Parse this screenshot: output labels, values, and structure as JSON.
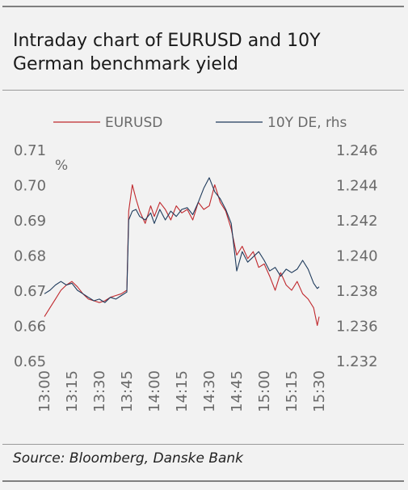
{
  "title": "Intraday chart of EURUSD and 10Y German benchmark yield",
  "source": "Source: Bloomberg, Danske Bank",
  "colors": {
    "eurusd": "#c0282d",
    "de10y": "#1f3b5c",
    "text": "#6a6a6a",
    "background": "#f2f2f2"
  },
  "chart_data": {
    "type": "line",
    "legend": {
      "placement": "top",
      "entries": [
        "EURUSD",
        "10Y DE, rhs"
      ]
    },
    "left_axis": {
      "ticks": [
        "0.71",
        "0.70",
        "0.69",
        "0.68",
        "0.67",
        "0.66",
        "0.65"
      ],
      "range": [
        0.65,
        0.71
      ],
      "unit": "%"
    },
    "right_axis": {
      "ticks": [
        "1.246",
        "1.244",
        "1.242",
        "1.240",
        "1.238",
        "1.236",
        "1.232"
      ],
      "range": [
        1.232,
        1.246
      ]
    },
    "x_ticks": [
      "13:00",
      "13:15",
      "13:30",
      "13:45",
      "14:00",
      "14:15",
      "14:30",
      "14:45",
      "15:00",
      "15:15",
      "15:30"
    ],
    "x_range": [
      "13:00",
      "15:30"
    ],
    "grid": false,
    "series": [
      {
        "name": "EURUSD",
        "axis": "right",
        "color": "#c0282d",
        "x": [
          "13:00",
          "13:03",
          "13:06",
          "13:09",
          "13:12",
          "13:15",
          "13:18",
          "13:21",
          "13:24",
          "13:27",
          "13:30",
          "13:33",
          "13:36",
          "13:39",
          "13:42",
          "13:45",
          "13:46",
          "13:48",
          "13:50",
          "13:52",
          "13:55",
          "13:58",
          "14:00",
          "14:03",
          "14:06",
          "14:09",
          "14:12",
          "14:15",
          "14:18",
          "14:21",
          "14:24",
          "14:27",
          "14:30",
          "14:33",
          "14:36",
          "14:39",
          "14:42",
          "14:45",
          "14:48",
          "14:51",
          "14:54",
          "14:57",
          "15:00",
          "15:03",
          "15:06",
          "15:09",
          "15:12",
          "15:15",
          "15:18",
          "15:21",
          "15:24",
          "15:27",
          "15:29",
          "15:30"
        ],
        "y": [
          1.2365,
          1.237,
          1.2375,
          1.238,
          1.2383,
          1.2385,
          1.2382,
          1.2378,
          1.2375,
          1.2374,
          1.2373,
          1.2374,
          1.2376,
          1.2377,
          1.2378,
          1.238,
          1.2425,
          1.244,
          1.2432,
          1.2425,
          1.2418,
          1.2428,
          1.2422,
          1.243,
          1.2426,
          1.242,
          1.2428,
          1.2424,
          1.2426,
          1.242,
          1.243,
          1.2426,
          1.2428,
          1.244,
          1.243,
          1.2425,
          1.2415,
          1.24,
          1.2405,
          1.2398,
          1.2402,
          1.2393,
          1.2395,
          1.2388,
          1.238,
          1.239,
          1.2383,
          1.238,
          1.2385,
          1.2378,
          1.2375,
          1.237,
          1.236,
          1.2365
        ]
      },
      {
        "name": "10Y DE, rhs",
        "axis": "right",
        "color": "#1f3b5c",
        "x": [
          "13:00",
          "13:03",
          "13:06",
          "13:09",
          "13:12",
          "13:15",
          "13:18",
          "13:21",
          "13:24",
          "13:27",
          "13:30",
          "13:33",
          "13:36",
          "13:39",
          "13:42",
          "13:45",
          "13:46",
          "13:48",
          "13:50",
          "13:52",
          "13:55",
          "13:58",
          "14:00",
          "14:03",
          "14:06",
          "14:09",
          "14:12",
          "14:15",
          "14:18",
          "14:21",
          "14:24",
          "14:27",
          "14:30",
          "14:33",
          "14:36",
          "14:39",
          "14:42",
          "14:45",
          "14:48",
          "14:51",
          "14:54",
          "14:57",
          "15:00",
          "15:03",
          "15:06",
          "15:09",
          "15:12",
          "15:15",
          "15:18",
          "15:21",
          "15:24",
          "15:27",
          "15:29",
          "15:30"
        ],
        "y": [
          1.2378,
          1.238,
          1.2383,
          1.2385,
          1.2383,
          1.2384,
          1.238,
          1.2378,
          1.2376,
          1.2374,
          1.2375,
          1.2373,
          1.2376,
          1.2375,
          1.2377,
          1.2379,
          1.242,
          1.2425,
          1.2426,
          1.2422,
          1.242,
          1.2424,
          1.2418,
          1.2426,
          1.242,
          1.2425,
          1.2422,
          1.2426,
          1.2427,
          1.2423,
          1.243,
          1.2438,
          1.2444,
          1.2436,
          1.2432,
          1.2426,
          1.2418,
          1.2391,
          1.2402,
          1.2396,
          1.2399,
          1.2402,
          1.2397,
          1.2391,
          1.2393,
          1.2388,
          1.2392,
          1.239,
          1.2392,
          1.2397,
          1.2392,
          1.2384,
          1.2381,
          1.2382
        ]
      }
    ]
  }
}
